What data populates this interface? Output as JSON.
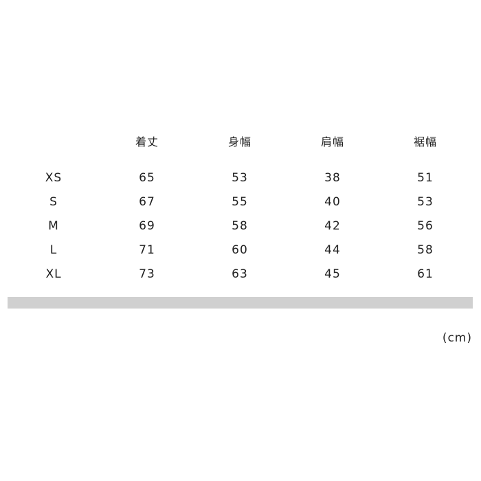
{
  "table": {
    "headers": [
      "",
      "着丈",
      "身幅",
      "肩幅",
      "裾幅"
    ],
    "rows": [
      [
        "XS",
        "65",
        "53",
        "38",
        "51"
      ],
      [
        "S",
        "67",
        "55",
        "40",
        "53"
      ],
      [
        "M",
        "69",
        "58",
        "42",
        "56"
      ],
      [
        "L",
        "71",
        "60",
        "44",
        "58"
      ],
      [
        "XL",
        "73",
        "63",
        "45",
        "61"
      ]
    ]
  },
  "unit": "(cm)",
  "colors": {
    "divider": "#d0d0d0",
    "text": "#222222"
  }
}
